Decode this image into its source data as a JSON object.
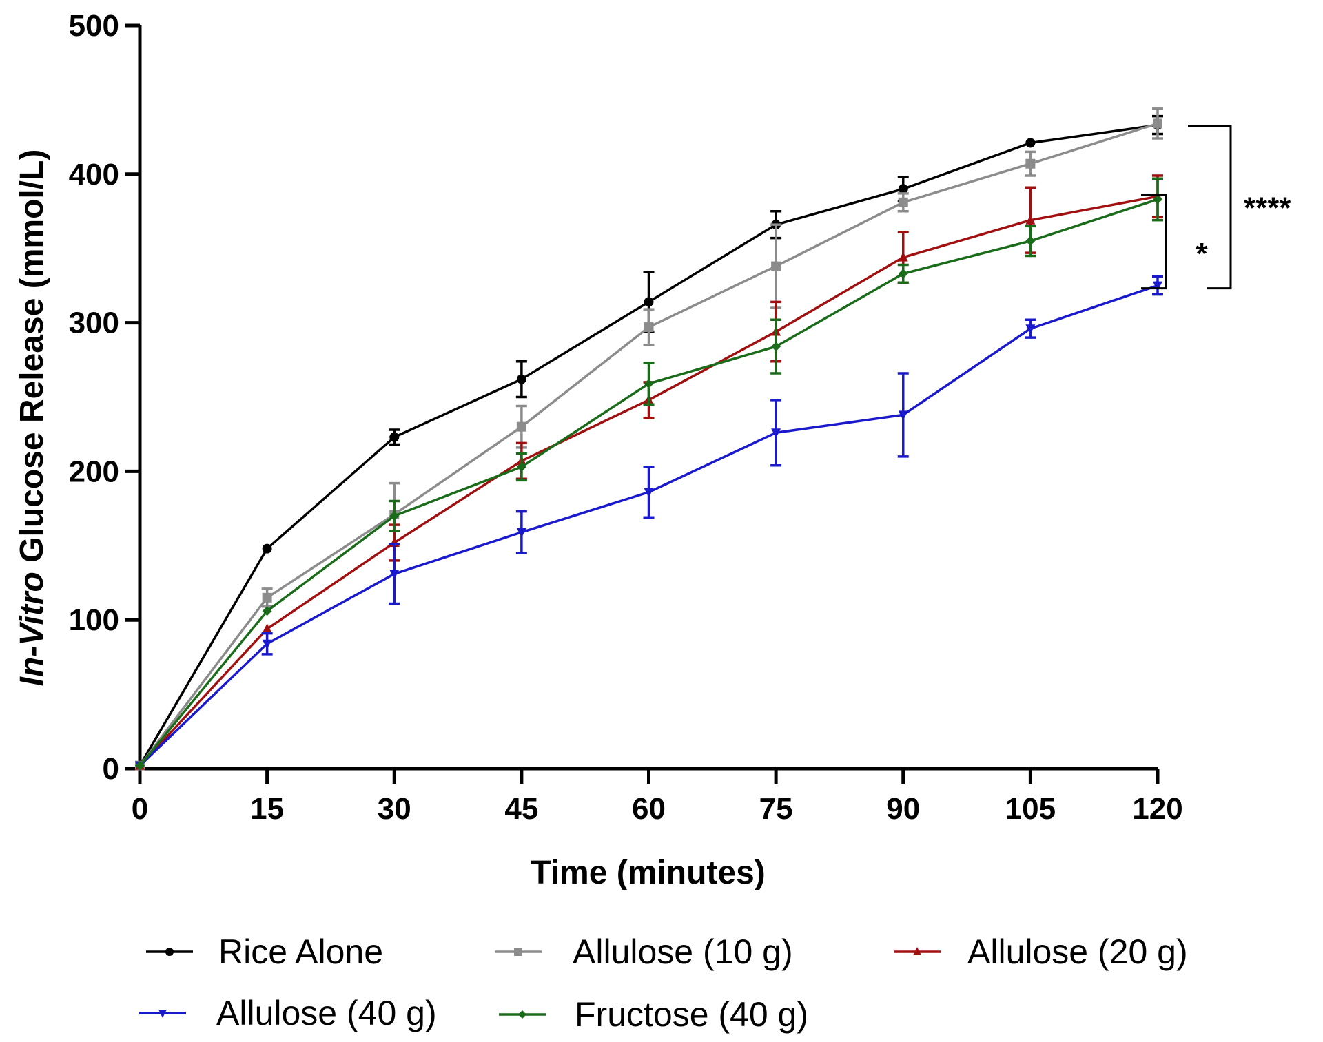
{
  "chart_data": {
    "type": "line",
    "title": "",
    "xlabel": "Time (minutes)",
    "ylabel_italic": "In-Vitro",
    "ylabel_rest": " Glucose Release (mmol/L)",
    "xlim": [
      0,
      120
    ],
    "ylim": [
      0,
      500
    ],
    "x_ticks": [
      0,
      15,
      30,
      45,
      60,
      75,
      90,
      105,
      120
    ],
    "y_ticks": [
      0,
      100,
      200,
      300,
      400,
      500
    ],
    "grid": false,
    "legend_position": "bottom",
    "x": [
      0,
      15,
      30,
      45,
      60,
      75,
      90,
      105,
      120
    ],
    "series": [
      {
        "name": "Rice Alone",
        "color": "#000000",
        "marker": "circle",
        "values": [
          2,
          148,
          223,
          262,
          314,
          366,
          390,
          421,
          433
        ],
        "errors": [
          0,
          0,
          5,
          12,
          20,
          9,
          8,
          0,
          6
        ]
      },
      {
        "name": "Allulose (10 g)",
        "color": "#8c8c8c",
        "marker": "square",
        "values": [
          2,
          115,
          171,
          230,
          297,
          338,
          381,
          407,
          434
        ],
        "errors": [
          0,
          6,
          21,
          14,
          12,
          28,
          6,
          8,
          10
        ]
      },
      {
        "name": "Allulose (20 g)",
        "color": "#a01010",
        "marker": "triangle-up",
        "values": [
          2,
          94,
          152,
          207,
          248,
          294,
          344,
          369,
          385
        ],
        "errors": [
          0,
          0,
          12,
          12,
          12,
          20,
          17,
          22,
          14
        ]
      },
      {
        "name": "Allulose (40 g)",
        "color": "#1a1acc",
        "marker": "triangle-down",
        "values": [
          2,
          84,
          131,
          159,
          186,
          226,
          238,
          296,
          325
        ],
        "errors": [
          0,
          7,
          20,
          14,
          17,
          22,
          28,
          6,
          6
        ]
      },
      {
        "name": "Fructose (40 g)",
        "color": "#1a6b1a",
        "marker": "diamond",
        "values": [
          2,
          106,
          170,
          203,
          259,
          284,
          333,
          355,
          383
        ],
        "errors": [
          0,
          0,
          10,
          9,
          14,
          18,
          6,
          10,
          14
        ]
      }
    ],
    "annotations": [
      {
        "text": "****",
        "from_value": 433,
        "to_value": 325
      },
      {
        "text": "*",
        "from_value": 385,
        "to_value": 325
      }
    ]
  }
}
